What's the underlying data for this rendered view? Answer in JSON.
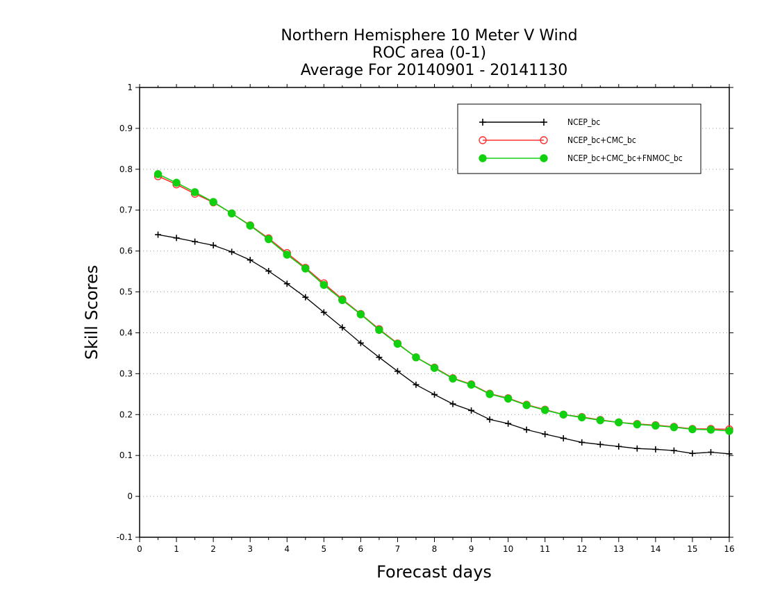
{
  "chart_data": {
    "type": "line",
    "title_lines": [
      "Northern Hemisphere 10 Meter V Wind",
      "ROC area (0-1)",
      "Average For 20140901 - 20141130"
    ],
    "xlabel": "Forecast days",
    "ylabel": "Skill Scores",
    "xlim": [
      0,
      16
    ],
    "ylim": [
      -0.1,
      1
    ],
    "x_ticks": [
      "0",
      "1",
      "2",
      "3",
      "4",
      "5",
      "6",
      "7",
      "8",
      "9",
      "10",
      "11",
      "12",
      "13",
      "14",
      "15",
      "16"
    ],
    "y_ticks": [
      "-0.1",
      "0",
      "0.1",
      "0.2",
      "0.3",
      "0.4",
      "0.5",
      "0.6",
      "0.7",
      "0.8",
      "0.9",
      "1"
    ],
    "grid": "horizontal-dotted",
    "legend_position": "top-right",
    "x": [
      0.5,
      1,
      1.5,
      2,
      2.5,
      3,
      3.5,
      4,
      4.5,
      5,
      5.5,
      6,
      6.5,
      7,
      7.5,
      8,
      8.5,
      9,
      9.5,
      10,
      10.5,
      11,
      11.5,
      12,
      12.5,
      13,
      13.5,
      14,
      14.5,
      15,
      15.5,
      16
    ],
    "series": [
      {
        "name": "NCEP_bc",
        "color": "#000000",
        "marker": "plus",
        "values": [
          0.64,
          0.632,
          0.623,
          0.614,
          0.598,
          0.578,
          0.551,
          0.52,
          0.487,
          0.45,
          0.413,
          0.375,
          0.34,
          0.306,
          0.273,
          0.249,
          0.226,
          0.21,
          0.188,
          0.178,
          0.163,
          0.152,
          0.142,
          0.132,
          0.127,
          0.122,
          0.117,
          0.115,
          0.112,
          0.105,
          0.108,
          0.104
        ]
      },
      {
        "name": "NCEP_bc+CMC_bc",
        "color": "#ff3030",
        "marker": "open-circle",
        "values": [
          0.783,
          0.763,
          0.74,
          0.719,
          0.692,
          0.663,
          0.631,
          0.595,
          0.559,
          0.521,
          0.482,
          0.446,
          0.409,
          0.374,
          0.34,
          0.315,
          0.289,
          0.274,
          0.251,
          0.24,
          0.224,
          0.212,
          0.2,
          0.194,
          0.187,
          0.181,
          0.177,
          0.174,
          0.17,
          0.165,
          0.165,
          0.164
        ]
      },
      {
        "name": "NCEP_bc+CMC_bc+FNMOC_bc",
        "color": "#10d010",
        "marker": "filled-circle",
        "values": [
          0.788,
          0.767,
          0.744,
          0.72,
          0.692,
          0.662,
          0.629,
          0.591,
          0.557,
          0.517,
          0.48,
          0.445,
          0.407,
          0.373,
          0.34,
          0.314,
          0.288,
          0.273,
          0.25,
          0.239,
          0.223,
          0.211,
          0.2,
          0.193,
          0.186,
          0.181,
          0.176,
          0.173,
          0.169,
          0.164,
          0.163,
          0.16
        ]
      }
    ]
  }
}
